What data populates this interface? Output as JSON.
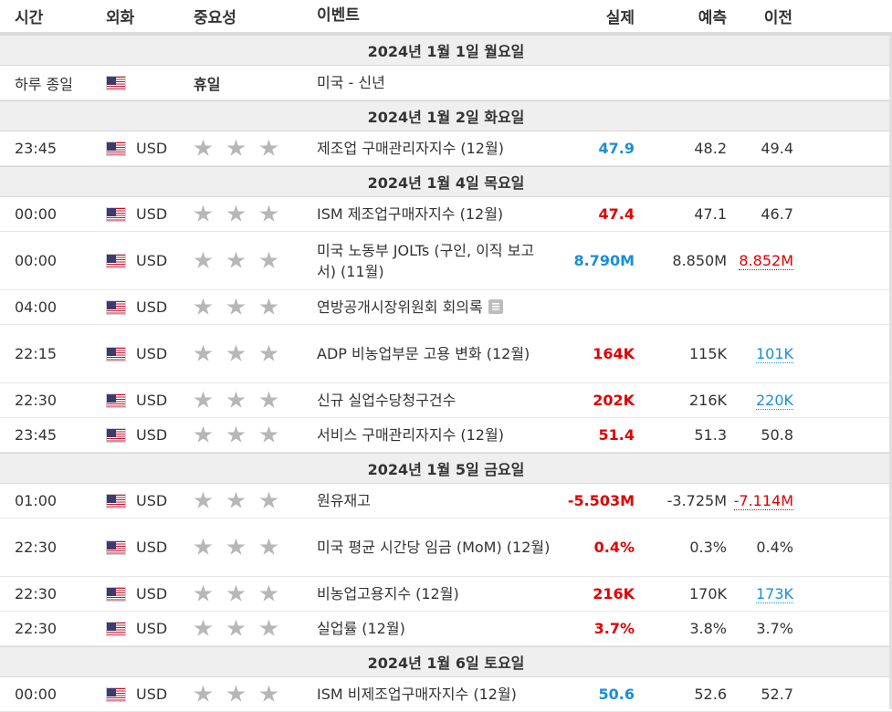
{
  "columns": {
    "time": "시간",
    "currency": "외화",
    "importance": "중요성",
    "event": "이벤트",
    "actual": "실제",
    "forecast": "예측",
    "previous": "이전"
  },
  "days": [
    {
      "date": "2024년 1월 1일 월요일",
      "rows": [
        {
          "time": "하루 종일",
          "currency": "",
          "holiday": "휴일",
          "event": "미국 - 신년",
          "actual": "",
          "forecast": "",
          "previous": ""
        }
      ]
    },
    {
      "date": "2024년 1월 2일 화요일",
      "rows": [
        {
          "time": "23:45",
          "currency": "USD",
          "event": "제조업 구매관리자지수 (12월)",
          "actual": "47.9",
          "forecast": "48.2",
          "previous": "49.4"
        }
      ]
    },
    {
      "date": "2024년 1월 4일 목요일",
      "rows": [
        {
          "time": "00:00",
          "currency": "USD",
          "event": "ISM 제조업구매자지수 (12월)",
          "actual": "47.4",
          "forecast": "47.1",
          "previous": "46.7"
        },
        {
          "time": "00:00",
          "currency": "USD",
          "event": "미국 노동부 JOLTs (구인, 이직 보고서) (11월)",
          "actual": "8.790M",
          "forecast": "8.850M",
          "previous": "8.852M"
        },
        {
          "time": "04:00",
          "currency": "USD",
          "event": "연방공개시장위원회 회의록",
          "actual": "",
          "forecast": "",
          "previous": ""
        },
        {
          "time": "22:15",
          "currency": "USD",
          "event": "ADP 비농업부문 고용 변화 (12월)",
          "actual": "164K",
          "forecast": "115K",
          "previous": "101K"
        },
        {
          "time": "22:30",
          "currency": "USD",
          "event": "신규 실업수당청구건수",
          "actual": "202K",
          "forecast": "216K",
          "previous": "220K"
        },
        {
          "time": "23:45",
          "currency": "USD",
          "event": "서비스 구매관리자지수 (12월)",
          "actual": "51.4",
          "forecast": "51.3",
          "previous": "50.8"
        }
      ]
    },
    {
      "date": "2024년 1월 5일 금요일",
      "rows": [
        {
          "time": "01:00",
          "currency": "USD",
          "event": "원유재고",
          "actual": "-5.503M",
          "forecast": "-3.725M",
          "previous": "-7.114M"
        },
        {
          "time": "22:30",
          "currency": "USD",
          "event": "미국 평균 시간당 임금 (MoM) (12월)",
          "actual": "0.4%",
          "forecast": "0.3%",
          "previous": "0.4%"
        },
        {
          "time": "22:30",
          "currency": "USD",
          "event": "비농업고용지수 (12월)",
          "actual": "216K",
          "forecast": "170K",
          "previous": "173K"
        },
        {
          "time": "22:30",
          "currency": "USD",
          "event": "실업률 (12월)",
          "actual": "3.7%",
          "forecast": "3.8%",
          "previous": "3.7%"
        }
      ]
    },
    {
      "date": "2024년 1월 6일 토요일",
      "rows": [
        {
          "time": "00:00",
          "currency": "USD",
          "event": "ISM 비제조업구매자지수 (12월)",
          "actual": "50.6",
          "forecast": "52.6",
          "previous": "52.7"
        }
      ]
    }
  ],
  "colors": {
    "better": "#1a8fd8",
    "worse": "#e00000",
    "day_bg": "#efefef"
  },
  "icons": {
    "flag": "us-flag-icon",
    "importance": "star-icon",
    "note": "document-icon"
  }
}
